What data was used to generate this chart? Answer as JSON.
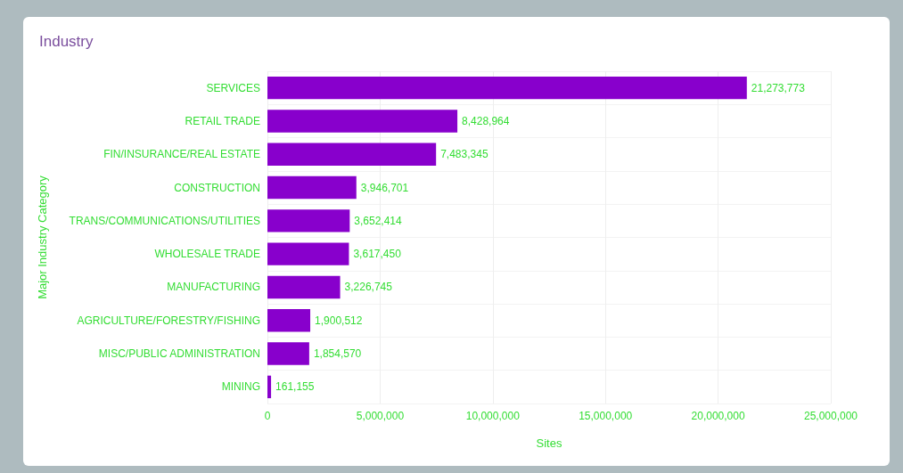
{
  "chart_data": {
    "type": "bar",
    "orientation": "horizontal",
    "title": "Industry",
    "xlabel": "Sites",
    "ylabel": "Major Industry Category",
    "categories": [
      "SERVICES",
      "RETAIL TRADE",
      "FIN/INSURANCE/REAL ESTATE",
      "CONSTRUCTION",
      "TRANS/COMMUNICATIONS/UTILITIES",
      "WHOLESALE TRADE",
      "MANUFACTURING",
      "AGRICULTURE/FORESTRY/FISHING",
      "MISC/PUBLIC ADMINISTRATION",
      "MINING"
    ],
    "values": [
      21273773,
      8428964,
      7483345,
      3946701,
      3652414,
      3617450,
      3226745,
      1900512,
      1854570,
      161155
    ],
    "value_labels": [
      "21,273,773",
      "8,428,964",
      "7,483,345",
      "3,946,701",
      "3,652,414",
      "3,617,450",
      "3,226,745",
      "1,900,512",
      "1,854,570",
      "161,155"
    ],
    "color": "#8800cc",
    "grid": true,
    "xlim": [
      0,
      25000000
    ],
    "xticks": [
      0,
      {
        "value": 5000000,
        "label": "5,000,000"
      },
      {
        "value": 10000000,
        "label": "10,000,000"
      },
      {
        "value": 15000000,
        "label": "15,000,000"
      },
      {
        "value": 20000000,
        "label": "20,000,000"
      },
      {
        "value": 25000000,
        "label": "25,000,000"
      }
    ]
  }
}
